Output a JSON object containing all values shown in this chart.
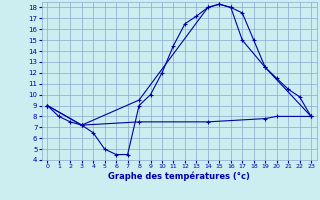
{
  "title": "Graphe des températures (°c)",
  "bg_color": "#cceef0",
  "grid_color": "#88aad0",
  "line_color": "#0000aa",
  "xlim": [
    -0.5,
    23.5
  ],
  "ylim": [
    4,
    18.5
  ],
  "xticks": [
    0,
    1,
    2,
    3,
    4,
    5,
    6,
    7,
    8,
    9,
    10,
    11,
    12,
    13,
    14,
    15,
    16,
    17,
    18,
    19,
    20,
    21,
    22,
    23
  ],
  "yticks": [
    4,
    5,
    6,
    7,
    8,
    9,
    10,
    11,
    12,
    13,
    14,
    15,
    16,
    17,
    18
  ],
  "line1_x": [
    0,
    1,
    2,
    3,
    4,
    5,
    6,
    7,
    8,
    9,
    10,
    11,
    12,
    13,
    14,
    15,
    16,
    17,
    18,
    19,
    20,
    21,
    22,
    23
  ],
  "line1_y": [
    9.0,
    8.0,
    7.5,
    7.2,
    6.5,
    5.0,
    4.5,
    4.5,
    9.0,
    10.0,
    12.0,
    14.5,
    16.5,
    17.2,
    18.0,
    18.3,
    18.0,
    17.5,
    15.0,
    12.5,
    11.5,
    10.5,
    9.8,
    8.0
  ],
  "line2_x": [
    0,
    3,
    8,
    14,
    15,
    16,
    17,
    19,
    23
  ],
  "line2_y": [
    9.0,
    7.2,
    9.5,
    18.0,
    18.3,
    18.0,
    15.0,
    12.5,
    8.0
  ],
  "line3_x": [
    0,
    3,
    8,
    14,
    19,
    20,
    23
  ],
  "line3_y": [
    9.0,
    7.2,
    7.5,
    7.5,
    7.8,
    8.0,
    8.0
  ]
}
